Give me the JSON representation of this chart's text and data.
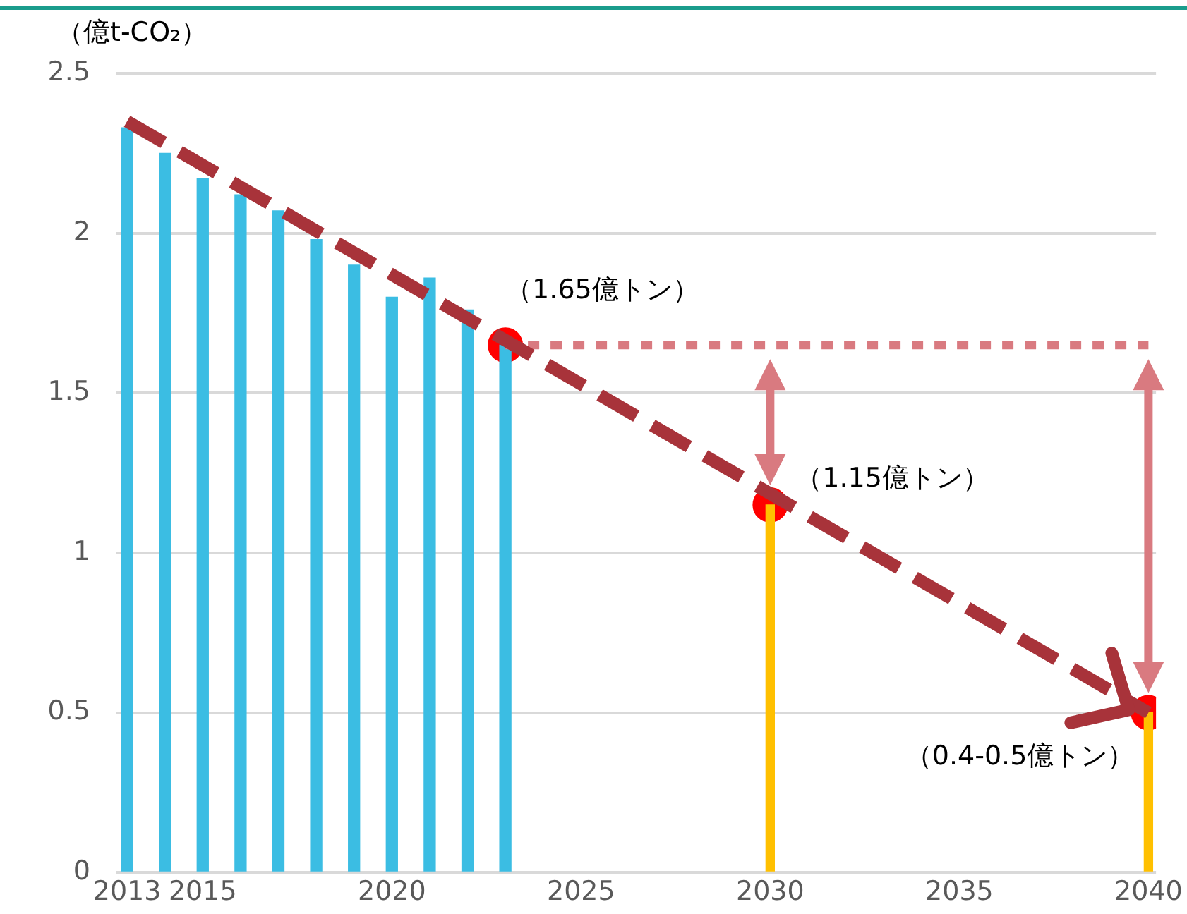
{
  "chart_data": {
    "type": "bar",
    "ylabel": "（億t-CO₂）",
    "xlim": [
      2012.7,
      2040.2
    ],
    "xticks": [
      2013,
      2015,
      2020,
      2025,
      2030,
      2035,
      2040
    ],
    "ylim": [
      0,
      2.5
    ],
    "yticks": [
      0,
      0.5,
      1,
      1.5,
      2,
      2.5
    ],
    "grid": "y",
    "legend": false,
    "series": [
      {
        "color": "#3bbde3",
        "x": [
          2013,
          2014,
          2015,
          2016,
          2017,
          2018,
          2019,
          2020,
          2021,
          2022,
          2023
        ],
        "values": [
          2.33,
          2.25,
          2.17,
          2.12,
          2.07,
          1.98,
          1.9,
          1.8,
          1.86,
          1.76,
          1.65
        ]
      },
      {
        "color": "#ffc000",
        "x": [
          2030,
          2040
        ],
        "values": [
          1.15,
          0.5
        ]
      },
      {
        "type": "line",
        "color": "#d97a80",
        "line_style": "dotted",
        "marker": "none",
        "x": [
          2023,
          2040
        ],
        "values": [
          1.65,
          1.65
        ]
      },
      {
        "type": "line",
        "color": "#a8333a",
        "line_style": "dashed",
        "marker": "none",
        "x": [
          2013,
          2040
        ],
        "values": [
          2.35,
          0.5
        ]
      },
      {
        "type": "scatter",
        "color": "#ff0000",
        "marker": "circle",
        "x": [
          2023,
          2030,
          2040
        ],
        "values": [
          1.65,
          1.15,
          0.5
        ]
      }
    ],
    "annotations": [
      {
        "text": "（1.65億トン）",
        "x": 2023,
        "y": 1.65
      },
      {
        "text": "（1.15億トン）",
        "x": 2030,
        "y": 1.15
      },
      {
        "text": "（0.4-0.5億トン）",
        "x": 2040,
        "y": 0.5
      }
    ]
  }
}
